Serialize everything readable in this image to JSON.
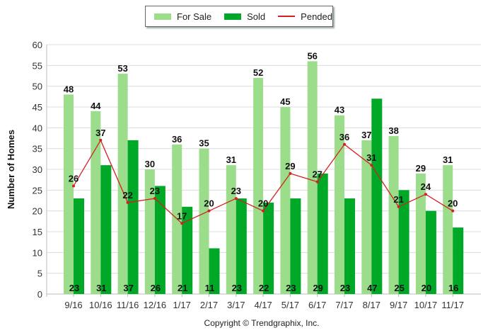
{
  "chart_data": {
    "type": "bar",
    "ylabel": "Number of Homes",
    "xlabel": "",
    "ylim": [
      0,
      60
    ],
    "yticks": [
      0,
      5,
      10,
      15,
      20,
      25,
      30,
      35,
      40,
      45,
      50,
      55,
      60
    ],
    "categories": [
      "9/16",
      "10/16",
      "11/16",
      "12/16",
      "1/17",
      "2/17",
      "3/17",
      "4/17",
      "5/17",
      "6/17",
      "7/17",
      "8/17",
      "9/17",
      "10/17",
      "11/17"
    ],
    "series": [
      {
        "name": "For Sale",
        "type": "bar",
        "color": "#9bdd8a",
        "values": [
          48,
          44,
          53,
          30,
          36,
          35,
          31,
          52,
          45,
          56,
          43,
          37,
          38,
          29,
          31
        ]
      },
      {
        "name": "Sold",
        "type": "bar",
        "color": "#00a828",
        "values": [
          23,
          31,
          37,
          26,
          21,
          11,
          23,
          22,
          23,
          29,
          23,
          47,
          25,
          20,
          16
        ]
      },
      {
        "name": "Pended",
        "type": "line",
        "color": "#d42020",
        "values": [
          26,
          37,
          22,
          23,
          17,
          20,
          23,
          20,
          29,
          27,
          36,
          31,
          21,
          24,
          20
        ]
      }
    ],
    "grid": true,
    "legend_position": "top-center",
    "footer": "Copyright © Trendgraphix, Inc."
  }
}
